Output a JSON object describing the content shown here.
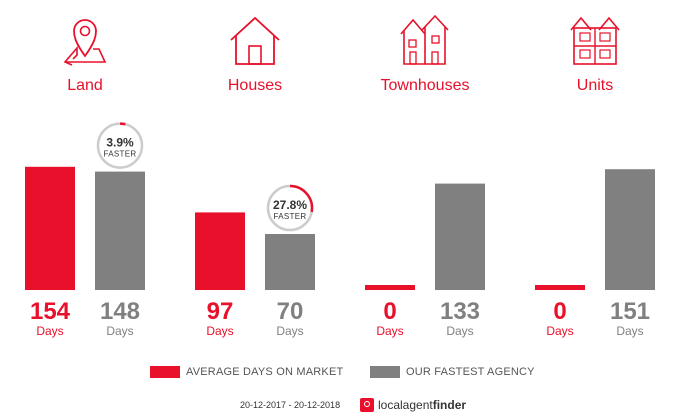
{
  "colors": {
    "accent": "#e8102a",
    "grey": "#808080",
    "badge_ring": "#cccccc"
  },
  "chart_data": {
    "type": "bar",
    "categories": [
      "Land",
      "Houses",
      "Townhouses",
      "Units"
    ],
    "category_icons": [
      "map-pin-icon",
      "house-icon",
      "townhouse-icon",
      "units-icon"
    ],
    "series": [
      {
        "name": "AVERAGE DAYS ON MARKET",
        "values": [
          154,
          97,
          0,
          0
        ]
      },
      {
        "name": "OUR FASTEST AGENCY",
        "values": [
          148,
          70,
          133,
          151
        ]
      }
    ],
    "value_unit": "Days",
    "badges": [
      {
        "category": "Land",
        "percent": "3.9%",
        "fraction": 0.039,
        "label": "FASTER"
      },
      {
        "category": "Houses",
        "percent": "27.8%",
        "fraction": 0.278,
        "label": "FASTER"
      }
    ],
    "ylim": [
      0,
      160
    ],
    "legend_position": "bottom",
    "grid": false
  },
  "footer": {
    "date_range": "20-12-2017 - 20-12-2018",
    "brand_a": "localagent",
    "brand_b": "finder"
  }
}
